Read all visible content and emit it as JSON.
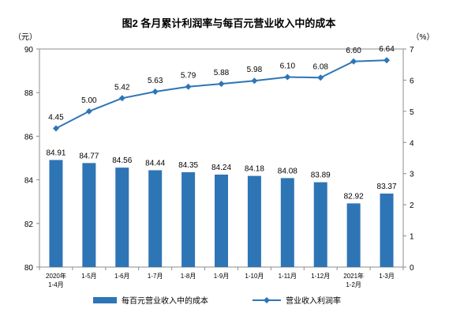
{
  "chart_data": {
    "type": "bar+line",
    "title": "图2  各月累计利润率与每百元营业收入中的成本",
    "left_axis_unit": "（元）",
    "right_axis_unit": "（%）",
    "categories": [
      [
        "2020年",
        "1-4月"
      ],
      [
        "1-5月"
      ],
      [
        "1-6月"
      ],
      [
        "1-7月"
      ],
      [
        "1-8月"
      ],
      [
        "1-9月"
      ],
      [
        "1-10月"
      ],
      [
        "1-11月"
      ],
      [
        "1-12月"
      ],
      [
        "2021年",
        "1-2月"
      ],
      [
        "1-3月"
      ]
    ],
    "left_axis": {
      "min": 80,
      "max": 90,
      "ticks": [
        80,
        82,
        84,
        86,
        88,
        90
      ]
    },
    "right_axis": {
      "min": 0,
      "max": 7,
      "ticks": [
        0,
        1,
        2,
        3,
        4,
        5,
        6,
        7
      ]
    },
    "series": [
      {
        "name": "每百元营业收入中的成本",
        "type": "bar",
        "axis": "left",
        "color": "#2e75b6",
        "values": [
          84.91,
          84.77,
          84.56,
          84.44,
          84.35,
          84.24,
          84.18,
          84.08,
          83.89,
          82.92,
          83.37
        ],
        "labels": [
          "84.91",
          "84.77",
          "84.56",
          "84.44",
          "84.35",
          "84.24",
          "84.18",
          "84.08",
          "83.89",
          "82.92",
          "83.37"
        ]
      },
      {
        "name": "营业收入利润率",
        "type": "line",
        "axis": "right",
        "color": "#2e75b6",
        "values": [
          4.45,
          5.0,
          5.42,
          5.63,
          5.79,
          5.88,
          5.98,
          6.1,
          6.08,
          6.6,
          6.64
        ],
        "labels": [
          "4.45",
          "5.00",
          "5.42",
          "5.63",
          "5.79",
          "5.88",
          "5.98",
          "6.10",
          "6.08",
          "6.60",
          "6.64"
        ]
      }
    ],
    "grid": false,
    "legend_position": "bottom"
  }
}
